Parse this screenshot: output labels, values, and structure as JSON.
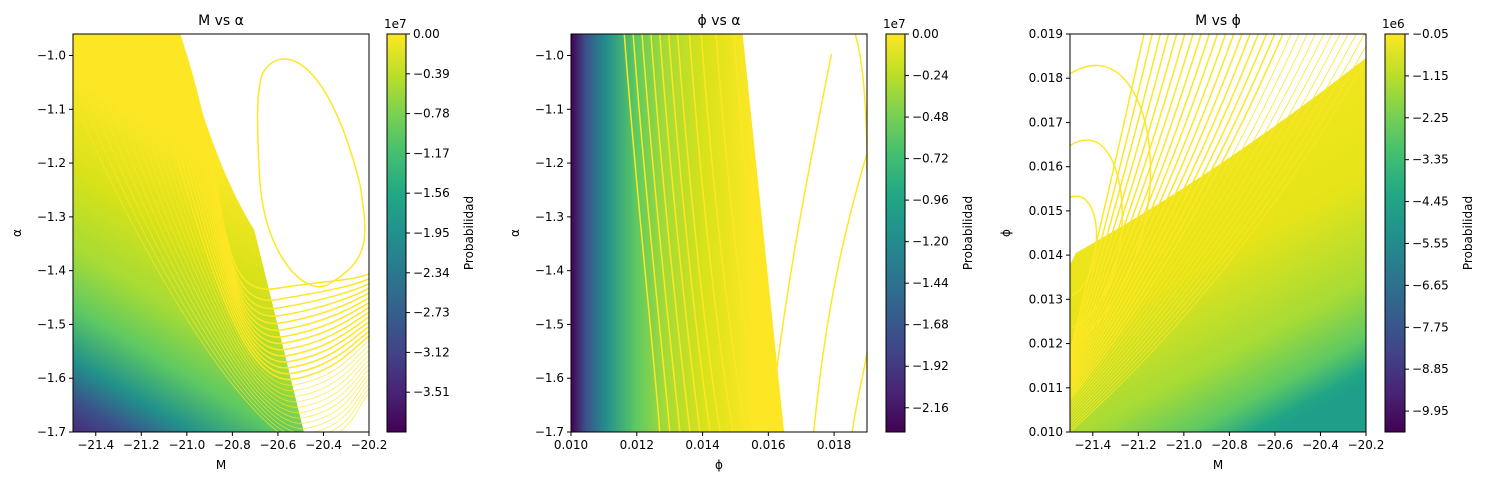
{
  "chart_data": [
    {
      "type": "contour",
      "title": "M vs α",
      "xlabel": "M",
      "ylabel": "α",
      "xlim": [
        -21.5,
        -20.2
      ],
      "ylim": [
        -1.7,
        -0.96
      ],
      "x_ticks": [
        -21.4,
        -21.2,
        -21.0,
        -20.8,
        -20.6,
        -20.4,
        -20.2
      ],
      "x_tick_labels": [
        "−21.4",
        "−21.2",
        "−21.0",
        "−20.8",
        "−20.6",
        "−20.4",
        "−20.2"
      ],
      "y_ticks": [
        -1.7,
        -1.6,
        -1.5,
        -1.4,
        -1.3,
        -1.2,
        -1.1,
        -1.0
      ],
      "y_tick_labels": [
        "−1.7",
        "−1.6",
        "−1.5",
        "−1.4",
        "−1.3",
        "−1.2",
        "−1.1",
        "−1.0"
      ],
      "colorbar": {
        "label": "Probabilidad",
        "multiplier": "1e7",
        "range": [
          -3.9,
          0
        ],
        "ticks": [
          0.0,
          -0.39,
          -0.78,
          -1.17,
          -1.56,
          -1.95,
          -2.34,
          -2.73,
          -3.12,
          -3.51
        ],
        "tick_labels": [
          "0.00",
          "−0.39",
          "−0.78",
          "−1.17",
          "−1.56",
          "−1.95",
          "−2.34",
          "−2.73",
          "−3.12",
          "−3.51"
        ]
      },
      "colormap": "viridis"
    },
    {
      "type": "contour",
      "title": "ϕ vs α",
      "xlabel": "ϕ",
      "ylabel": "α",
      "xlim": [
        0.01,
        0.019
      ],
      "ylim": [
        -1.7,
        -0.96
      ],
      "x_ticks": [
        0.01,
        0.012,
        0.014,
        0.016,
        0.018
      ],
      "x_tick_labels": [
        "0.010",
        "0.012",
        "0.014",
        "0.016",
        "0.018"
      ],
      "y_ticks": [
        -1.7,
        -1.6,
        -1.5,
        -1.4,
        -1.3,
        -1.2,
        -1.1,
        -1.0
      ],
      "y_tick_labels": [
        "−1.7",
        "−1.6",
        "−1.5",
        "−1.4",
        "−1.3",
        "−1.2",
        "−1.1",
        "−1.0"
      ],
      "colorbar": {
        "label": "Probabilidad",
        "multiplier": "1e7",
        "range": [
          -2.3,
          0
        ],
        "ticks": [
          0.0,
          -0.24,
          -0.48,
          -0.72,
          -0.96,
          -1.2,
          -1.44,
          -1.68,
          -1.92,
          -2.16
        ],
        "tick_labels": [
          "0.00",
          "−0.24",
          "−0.48",
          "−0.72",
          "−0.96",
          "−1.20",
          "−1.44",
          "−1.68",
          "−1.92",
          "−2.16"
        ]
      },
      "colormap": "viridis"
    },
    {
      "type": "contour",
      "title": "M vs ϕ",
      "xlabel": "M",
      "ylabel": "ϕ",
      "xlim": [
        -21.5,
        -20.2
      ],
      "ylim": [
        0.01,
        0.019
      ],
      "x_ticks": [
        -21.4,
        -21.2,
        -21.0,
        -20.8,
        -20.6,
        -20.4,
        -20.2
      ],
      "x_tick_labels": [
        "−21.4",
        "−21.2",
        "−21.0",
        "−20.8",
        "−20.6",
        "−20.4",
        "−20.2"
      ],
      "y_ticks": [
        0.01,
        0.011,
        0.012,
        0.013,
        0.014,
        0.015,
        0.016,
        0.017,
        0.018,
        0.019
      ],
      "y_tick_labels": [
        "0.010",
        "0.011",
        "0.012",
        "0.013",
        "0.014",
        "0.015",
        "0.016",
        "0.017",
        "0.018",
        "0.019"
      ],
      "colorbar": {
        "label": "Probabilidad",
        "multiplier": "1e6",
        "range": [
          -10.5,
          -0.05
        ],
        "ticks": [
          -0.05,
          -1.15,
          -2.25,
          -3.35,
          -4.45,
          -5.55,
          -6.65,
          -7.75,
          -8.85,
          -9.95
        ],
        "tick_labels": [
          "−0.05",
          "−1.15",
          "−2.25",
          "−3.35",
          "−4.45",
          "−5.55",
          "−6.65",
          "−7.75",
          "−8.85",
          "−9.95"
        ]
      },
      "colormap": "viridis"
    }
  ]
}
